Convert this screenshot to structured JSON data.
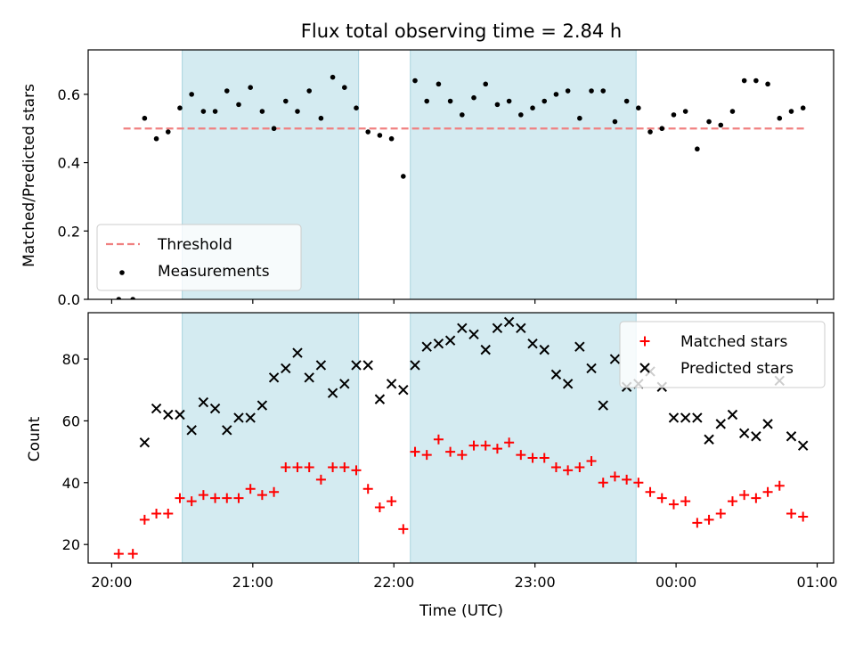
{
  "chart_data": [
    {
      "type": "scatter",
      "title": "Flux total observing time = 2.84 h",
      "xlabel": "",
      "ylabel": "Matched/Predicted stars",
      "ylim": [
        0,
        0.73
      ],
      "xlim": [
        "19:50",
        "01:07"
      ],
      "grid": false,
      "legend": "lower-left",
      "yticks": [
        "0.0",
        "0.2",
        "0.4",
        "0.6"
      ],
      "ytick_values": [
        0,
        0.2,
        0.4,
        0.6
      ],
      "threshold": {
        "name": "Threshold",
        "y": 0.5,
        "x_start": "20:05",
        "x_end": "00:55",
        "color": "#f08080"
      },
      "shaded_spans": [
        [
          "20:30",
          "21:45"
        ],
        [
          "22:07",
          "23:43"
        ]
      ],
      "shade_color": "#d4ebf1",
      "series": [
        {
          "name": "Measurements",
          "color": "#000000",
          "marker": "dot",
          "x": [
            "20:03",
            "20:09",
            "20:14",
            "20:19",
            "20:24",
            "20:29",
            "20:34",
            "20:39",
            "20:44",
            "20:49",
            "20:54",
            "20:59",
            "21:04",
            "21:09",
            "21:14",
            "21:19",
            "21:24",
            "21:29",
            "21:34",
            "21:39",
            "21:44",
            "21:49",
            "21:54",
            "21:59",
            "22:04",
            "22:09",
            "22:14",
            "22:19",
            "22:24",
            "22:29",
            "22:34",
            "22:39",
            "22:44",
            "22:49",
            "22:54",
            "22:59",
            "23:04",
            "23:09",
            "23:14",
            "23:19",
            "23:24",
            "23:29",
            "23:34",
            "23:39",
            "23:44",
            "23:49",
            "23:54",
            "23:59",
            "00:04",
            "00:09",
            "00:14",
            "00:19",
            "00:24",
            "00:29",
            "00:34",
            "00:39",
            "00:44",
            "00:49",
            "00:54"
          ],
          "y": [
            0.0,
            0.0,
            0.53,
            0.47,
            0.49,
            0.56,
            0.6,
            0.55,
            0.55,
            0.61,
            0.57,
            0.62,
            0.55,
            0.5,
            0.58,
            0.55,
            0.61,
            0.53,
            0.65,
            0.62,
            0.56,
            0.49,
            0.48,
            0.47,
            0.36,
            0.64,
            0.58,
            0.63,
            0.58,
            0.54,
            0.59,
            0.63,
            0.57,
            0.58,
            0.54,
            0.56,
            0.58,
            0.6,
            0.61,
            0.53,
            0.61,
            0.61,
            0.52,
            0.58,
            0.56,
            0.49,
            0.5,
            0.54,
            0.55,
            0.44,
            0.52,
            0.51,
            0.55,
            0.64,
            0.64,
            0.63,
            0.53,
            0.55,
            0.56
          ]
        }
      ]
    },
    {
      "type": "scatter",
      "title": "",
      "xlabel": "Time (UTC)",
      "ylabel": "Count",
      "ylim": [
        14,
        95
      ],
      "xlim": [
        "19:50",
        "01:07"
      ],
      "grid": false,
      "legend": "top-right",
      "xticks": [
        "20:00",
        "21:00",
        "22:00",
        "23:00",
        "00:00",
        "01:00"
      ],
      "yticks": [
        "20",
        "40",
        "60",
        "80"
      ],
      "ytick_values": [
        20,
        40,
        60,
        80
      ],
      "shaded_spans": [
        [
          "20:30",
          "21:45"
        ],
        [
          "22:07",
          "23:43"
        ]
      ],
      "shade_color": "#d4ebf1",
      "series": [
        {
          "name": "Matched stars",
          "color": "#ff0000",
          "marker": "plus",
          "x": [
            "20:03",
            "20:09",
            "20:14",
            "20:19",
            "20:24",
            "20:29",
            "20:34",
            "20:39",
            "20:44",
            "20:49",
            "20:54",
            "20:59",
            "21:04",
            "21:09",
            "21:14",
            "21:19",
            "21:24",
            "21:29",
            "21:34",
            "21:39",
            "21:44",
            "21:49",
            "21:54",
            "21:59",
            "22:04",
            "22:09",
            "22:14",
            "22:19",
            "22:24",
            "22:29",
            "22:34",
            "22:39",
            "22:44",
            "22:49",
            "22:54",
            "22:59",
            "23:04",
            "23:09",
            "23:14",
            "23:19",
            "23:24",
            "23:29",
            "23:34",
            "23:39",
            "23:44",
            "23:49",
            "23:54",
            "23:59",
            "00:04",
            "00:09",
            "00:14",
            "00:19",
            "00:24",
            "00:29",
            "00:34",
            "00:39",
            "00:44",
            "00:49",
            "00:54"
          ],
          "y": [
            17,
            17,
            28,
            30,
            30,
            35,
            34,
            36,
            35,
            35,
            35,
            38,
            36,
            37,
            45,
            45,
            45,
            41,
            45,
            45,
            44,
            38,
            32,
            34,
            25,
            50,
            49,
            54,
            50,
            49,
            52,
            52,
            51,
            53,
            49,
            48,
            48,
            45,
            44,
            45,
            47,
            40,
            42,
            41,
            40,
            37,
            35,
            33,
            34,
            27,
            28,
            30,
            34,
            36,
            35,
            37,
            39,
            30,
            29
          ]
        },
        {
          "name": "Predicted stars",
          "color": "#000000",
          "marker": "x",
          "x": [
            "20:14",
            "20:19",
            "20:24",
            "20:29",
            "20:34",
            "20:39",
            "20:44",
            "20:49",
            "20:54",
            "20:59",
            "21:04",
            "21:09",
            "21:14",
            "21:19",
            "21:24",
            "21:29",
            "21:34",
            "21:39",
            "21:44",
            "21:49",
            "21:54",
            "21:59",
            "22:04",
            "22:09",
            "22:14",
            "22:19",
            "22:24",
            "22:29",
            "22:34",
            "22:39",
            "22:44",
            "22:49",
            "22:54",
            "22:59",
            "23:04",
            "23:09",
            "23:14",
            "23:19",
            "23:24",
            "23:29",
            "23:34",
            "23:39",
            "23:44",
            "23:49",
            "23:54",
            "23:59",
            "00:04",
            "00:09",
            "00:14",
            "00:19",
            "00:24",
            "00:29",
            "00:34",
            "00:39",
            "00:44",
            "00:49",
            "00:54"
          ],
          "y": [
            53,
            64,
            62,
            62,
            57,
            66,
            64,
            57,
            61,
            61,
            65,
            74,
            77,
            82,
            74,
            78,
            69,
            72,
            78,
            78,
            67,
            72,
            70,
            78,
            84,
            85,
            86,
            90,
            88,
            83,
            90,
            92,
            90,
            85,
            83,
            75,
            72,
            84,
            77,
            65,
            80,
            71,
            72,
            76,
            71,
            61,
            61,
            61,
            54,
            59,
            62,
            56,
            55,
            59,
            73,
            55,
            52
          ]
        }
      ]
    }
  ]
}
